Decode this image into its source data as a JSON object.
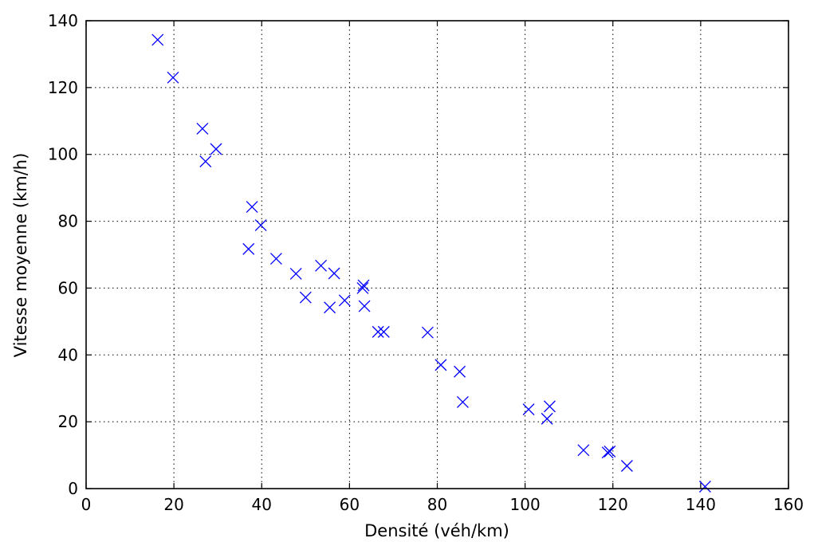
{
  "chart_data": {
    "type": "scatter",
    "xlabel": "Densité (véh/km)",
    "ylabel": "Vitesse moyenne (km/h)",
    "xlim": [
      0,
      160
    ],
    "ylim": [
      0,
      140
    ],
    "x_ticks": [
      "0",
      "20",
      "40",
      "60",
      "80",
      "100",
      "120",
      "140",
      "160"
    ],
    "y_ticks": [
      "0",
      "20",
      "40",
      "60",
      "80",
      "100",
      "120",
      "140"
    ],
    "grid": true,
    "grid_style": "dotted",
    "marker": "x",
    "marker_color": "#0000ff",
    "points": [
      {
        "x": 16.3,
        "y": 134.3
      },
      {
        "x": 19.8,
        "y": 123.0
      },
      {
        "x": 26.5,
        "y": 107.7
      },
      {
        "x": 27.2,
        "y": 97.9
      },
      {
        "x": 29.6,
        "y": 101.6
      },
      {
        "x": 37.0,
        "y": 71.7
      },
      {
        "x": 37.8,
        "y": 84.3
      },
      {
        "x": 39.8,
        "y": 78.8
      },
      {
        "x": 43.3,
        "y": 68.8
      },
      {
        "x": 47.8,
        "y": 64.3
      },
      {
        "x": 50.0,
        "y": 57.2
      },
      {
        "x": 53.5,
        "y": 66.7
      },
      {
        "x": 55.5,
        "y": 54.2
      },
      {
        "x": 56.5,
        "y": 64.4
      },
      {
        "x": 58.9,
        "y": 56.3
      },
      {
        "x": 63.0,
        "y": 60.0
      },
      {
        "x": 63.2,
        "y": 60.8
      },
      {
        "x": 63.4,
        "y": 54.6
      },
      {
        "x": 66.5,
        "y": 46.9
      },
      {
        "x": 67.8,
        "y": 46.9
      },
      {
        "x": 77.8,
        "y": 46.7
      },
      {
        "x": 80.8,
        "y": 37.0
      },
      {
        "x": 85.1,
        "y": 35.0
      },
      {
        "x": 85.8,
        "y": 25.9
      },
      {
        "x": 100.8,
        "y": 23.7
      },
      {
        "x": 105.0,
        "y": 20.9
      },
      {
        "x": 105.6,
        "y": 24.6
      },
      {
        "x": 113.3,
        "y": 11.5
      },
      {
        "x": 118.8,
        "y": 10.8
      },
      {
        "x": 119.3,
        "y": 11.1
      },
      {
        "x": 123.2,
        "y": 6.8
      },
      {
        "x": 141.0,
        "y": 0.6
      }
    ]
  }
}
